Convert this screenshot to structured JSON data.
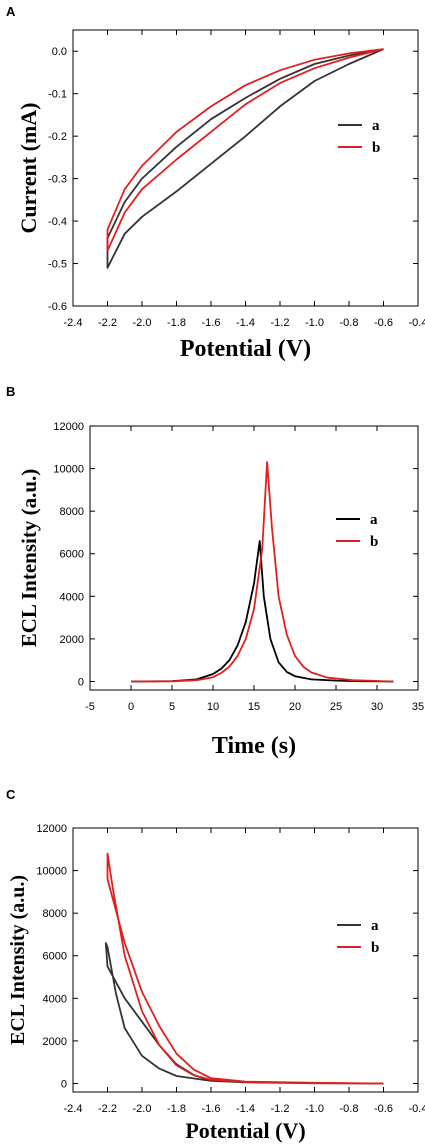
{
  "chart_data": [
    {
      "panel": "A",
      "type": "line",
      "xlabel": "Potential (V)",
      "ylabel": "Current (mA)",
      "xlim": [
        -2.4,
        -0.4
      ],
      "ylim": [
        -0.6,
        0.05
      ],
      "xticks": [
        -2.4,
        -2.2,
        -2.0,
        -1.8,
        -1.6,
        -1.4,
        -1.2,
        -1.0,
        -0.8,
        -0.6,
        -0.4
      ],
      "yticks": [
        -0.6,
        -0.5,
        -0.4,
        -0.3,
        -0.2,
        -0.1,
        0.0
      ],
      "xtick_labels": [
        "-2.4",
        "-2.2",
        "-2.0",
        "-1.8",
        "-1.6",
        "-1.4",
        "-1.2",
        "-1.0",
        "-0.8",
        "-0.6",
        "-0.4"
      ],
      "ytick_labels": [
        "-0.6",
        "-0.5",
        "-0.4",
        "-0.3",
        "-0.2",
        "-0.1",
        "0.0"
      ],
      "grid": false,
      "legend_position": "right",
      "series": [
        {
          "name": "a",
          "color": "#333333",
          "points": [
            [
              -0.6,
              0.005
            ],
            [
              -0.8,
              -0.01
            ],
            [
              -1.0,
              -0.03
            ],
            [
              -1.2,
              -0.065
            ],
            [
              -1.4,
              -0.11
            ],
            [
              -1.6,
              -0.16
            ],
            [
              -1.8,
              -0.225
            ],
            [
              -2.0,
              -0.3
            ],
            [
              -2.1,
              -0.355
            ],
            [
              -2.2,
              -0.44
            ],
            [
              -2.2,
              -0.51
            ],
            [
              -2.15,
              -0.47
            ],
            [
              -2.1,
              -0.43
            ],
            [
              -2.0,
              -0.39
            ],
            [
              -1.8,
              -0.33
            ],
            [
              -1.6,
              -0.265
            ],
            [
              -1.4,
              -0.2
            ],
            [
              -1.2,
              -0.13
            ],
            [
              -1.0,
              -0.07
            ],
            [
              -0.8,
              -0.03
            ],
            [
              -0.6,
              0.005
            ]
          ]
        },
        {
          "name": "b",
          "color": "#e02020",
          "points": [
            [
              -0.6,
              0.005
            ],
            [
              -0.8,
              -0.005
            ],
            [
              -1.0,
              -0.02
            ],
            [
              -1.2,
              -0.045
            ],
            [
              -1.4,
              -0.08
            ],
            [
              -1.6,
              -0.13
            ],
            [
              -1.8,
              -0.19
            ],
            [
              -2.0,
              -0.27
            ],
            [
              -2.1,
              -0.325
            ],
            [
              -2.2,
              -0.42
            ],
            [
              -2.2,
              -0.47
            ],
            [
              -2.1,
              -0.38
            ],
            [
              -2.0,
              -0.325
            ],
            [
              -1.8,
              -0.255
            ],
            [
              -1.6,
              -0.19
            ],
            [
              -1.4,
              -0.125
            ],
            [
              -1.2,
              -0.075
            ],
            [
              -1.0,
              -0.04
            ],
            [
              -0.8,
              -0.015
            ],
            [
              -0.6,
              0.005
            ]
          ]
        }
      ]
    },
    {
      "panel": "B",
      "type": "line",
      "xlabel": "Time (s)",
      "ylabel": "ECL Intensity (a.u.)",
      "xlim": [
        -5,
        35
      ],
      "ylim": [
        -400,
        12000
      ],
      "xticks": [
        -5,
        0,
        5,
        10,
        15,
        20,
        25,
        30,
        35
      ],
      "yticks": [
        0,
        2000,
        4000,
        6000,
        8000,
        10000,
        12000
      ],
      "xtick_labels": [
        "-5",
        "0",
        "5",
        "10",
        "15",
        "20",
        "25",
        "30",
        "35"
      ],
      "ytick_labels": [
        "0",
        "2000",
        "4000",
        "6000",
        "8000",
        "10000",
        "12000"
      ],
      "grid": false,
      "legend_position": "right",
      "series": [
        {
          "name": "a",
          "color": "#000000",
          "points": [
            [
              0,
              0
            ],
            [
              5,
              20
            ],
            [
              8,
              100
            ],
            [
              10,
              350
            ],
            [
              11,
              600
            ],
            [
              12,
              1000
            ],
            [
              13,
              1700
            ],
            [
              14,
              2800
            ],
            [
              15,
              4600
            ],
            [
              15.7,
              6600
            ],
            [
              16.2,
              4000
            ],
            [
              17,
              2000
            ],
            [
              18,
              900
            ],
            [
              19,
              450
            ],
            [
              20,
              250
            ],
            [
              22,
              100
            ],
            [
              25,
              40
            ],
            [
              28,
              15
            ],
            [
              32,
              0
            ]
          ]
        },
        {
          "name": "b",
          "color": "#e02020",
          "points": [
            [
              0,
              0
            ],
            [
              5,
              10
            ],
            [
              8,
              60
            ],
            [
              10,
              200
            ],
            [
              11,
              400
            ],
            [
              12,
              700
            ],
            [
              13,
              1200
            ],
            [
              14,
              2000
            ],
            [
              15,
              3400
            ],
            [
              16,
              6200
            ],
            [
              16.6,
              10300
            ],
            [
              17.2,
              7200
            ],
            [
              18,
              4000
            ],
            [
              19,
              2200
            ],
            [
              20,
              1200
            ],
            [
              21,
              700
            ],
            [
              22,
              420
            ],
            [
              24,
              180
            ],
            [
              27,
              60
            ],
            [
              32,
              0
            ]
          ]
        }
      ]
    },
    {
      "panel": "C",
      "type": "line",
      "xlabel": "Potential (V)",
      "ylabel": "ECL Intensity (a.u.)",
      "xlim": [
        -2.4,
        -0.4
      ],
      "ylim": [
        -400,
        12000
      ],
      "xticks": [
        -2.4,
        -2.2,
        -2.0,
        -1.8,
        -1.6,
        -1.4,
        -1.2,
        -1.0,
        -0.8,
        -0.6,
        -0.4
      ],
      "yticks": [
        0,
        2000,
        4000,
        6000,
        8000,
        10000,
        12000
      ],
      "xtick_labels": [
        "-2.4",
        "-2.2",
        "-2.0",
        "-1.8",
        "-1.6",
        "-1.4",
        "-1.2",
        "-1.0",
        "-0.8",
        "-0.6",
        "-0.4"
      ],
      "ytick_labels": [
        "0",
        "2000",
        "4000",
        "6000",
        "8000",
        "10000",
        "12000"
      ],
      "grid": false,
      "legend_position": "right",
      "series": [
        {
          "name": "a",
          "color": "#333333",
          "points": [
            [
              -0.6,
              0
            ],
            [
              -1.0,
              20
            ],
            [
              -1.4,
              60
            ],
            [
              -1.6,
              130
            ],
            [
              -1.7,
              400
            ],
            [
              -1.8,
              900
            ],
            [
              -1.9,
              1800
            ],
            [
              -2.0,
              2900
            ],
            [
              -2.1,
              4000
            ],
            [
              -2.2,
              5500
            ],
            [
              -2.21,
              6600
            ],
            [
              -2.2,
              6400
            ],
            [
              -2.15,
              4200
            ],
            [
              -2.1,
              2600
            ],
            [
              -2.0,
              1300
            ],
            [
              -1.9,
              700
            ],
            [
              -1.8,
              350
            ],
            [
              -1.6,
              120
            ],
            [
              -1.4,
              50
            ],
            [
              -1.0,
              15
            ],
            [
              -0.6,
              0
            ]
          ]
        },
        {
          "name": "b",
          "color": "#e02020",
          "points": [
            [
              -0.6,
              0
            ],
            [
              -1.0,
              30
            ],
            [
              -1.4,
              90
            ],
            [
              -1.6,
              250
            ],
            [
              -1.7,
              650
            ],
            [
              -1.8,
              1400
            ],
            [
              -1.9,
              2700
            ],
            [
              -2.0,
              4300
            ],
            [
              -2.1,
              6600
            ],
            [
              -2.2,
              9600
            ],
            [
              -2.2,
              10800
            ],
            [
              -2.17,
              9200
            ],
            [
              -2.1,
              6000
            ],
            [
              -2.0,
              3400
            ],
            [
              -1.9,
              1800
            ],
            [
              -1.8,
              850
            ],
            [
              -1.7,
              380
            ],
            [
              -1.6,
              180
            ],
            [
              -1.4,
              70
            ],
            [
              -1.0,
              20
            ],
            [
              -0.6,
              0
            ]
          ]
        }
      ]
    }
  ]
}
